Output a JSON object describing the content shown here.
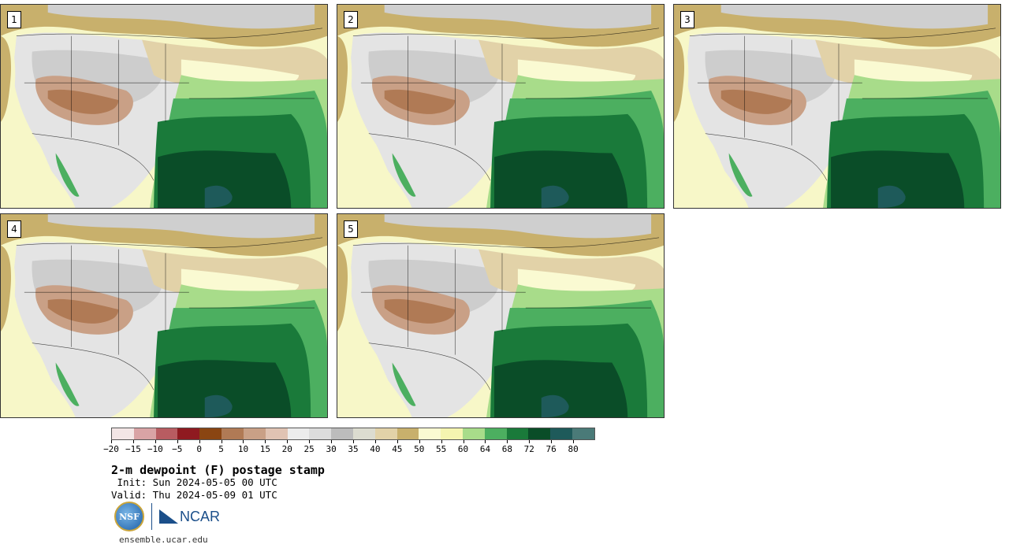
{
  "panels": [
    {
      "label": "1"
    },
    {
      "label": "2"
    },
    {
      "label": "3"
    },
    {
      "label": "4"
    },
    {
      "label": "5"
    }
  ],
  "colorbar": {
    "colors": [
      "#f3e6e6",
      "#d9a3a5",
      "#b85c61",
      "#8f1a20",
      "#8a4512",
      "#b07a55",
      "#c9a086",
      "#e0c3b3",
      "#ececec",
      "#dcdcdc",
      "#bcbcbc",
      "#dcdcd0",
      "#e2d2a8",
      "#c8b06c",
      "#fafad2",
      "#f5f5b0",
      "#a8dc8a",
      "#4caf60",
      "#1a7a3a",
      "#0a4d28",
      "#1e5a5a",
      "#4a7a78"
    ],
    "ticks": [
      "−20",
      "−15",
      "−10",
      "−5",
      "0",
      "5",
      "10",
      "15",
      "20",
      "25",
      "30",
      "35",
      "40",
      "45",
      "50",
      "55",
      "60",
      "64",
      "68",
      "72",
      "76",
      "80"
    ]
  },
  "text": {
    "title": "2-m dewpoint (F) postage stamp",
    "init": " Init: Sun 2024-05-05 00 UTC",
    "valid": "Valid: Thu 2024-05-09 01 UTC",
    "nsf": "NSF",
    "ncar": "NCAR",
    "url": "ensemble.ucar.edu"
  }
}
